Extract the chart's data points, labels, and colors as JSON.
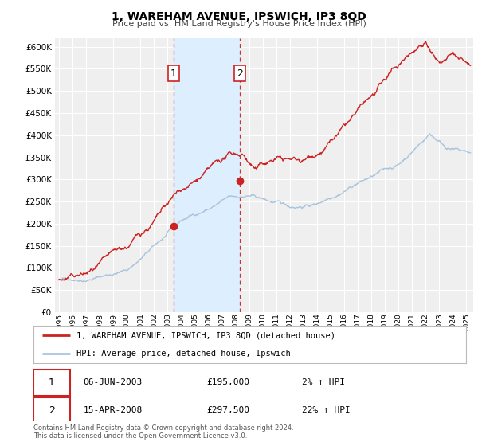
{
  "title": "1, WAREHAM AVENUE, IPSWICH, IP3 8QD",
  "subtitle": "Price paid vs. HM Land Registry's House Price Index (HPI)",
  "ylim": [
    0,
    620000
  ],
  "yticks": [
    0,
    50000,
    100000,
    150000,
    200000,
    250000,
    300000,
    350000,
    400000,
    450000,
    500000,
    550000,
    600000
  ],
  "xlim_start": 1994.7,
  "xlim_end": 2025.5,
  "bg_color": "#ffffff",
  "plot_bg_color": "#efefef",
  "grid_color": "#ffffff",
  "hpi_color": "#aac4dd",
  "price_color": "#cc2222",
  "marker1_date": 2003.44,
  "marker1_price": 195000,
  "marker2_date": 2008.29,
  "marker2_price": 297500,
  "shade_color": "#ddeeff",
  "dashed_color": "#cc3333",
  "legend_line1": "1, WAREHAM AVENUE, IPSWICH, IP3 8QD (detached house)",
  "legend_line2": "HPI: Average price, detached house, Ipswich",
  "annot1_date": "06-JUN-2003",
  "annot1_price": "£195,000",
  "annot1_hpi": "2% ↑ HPI",
  "annot2_date": "15-APR-2008",
  "annot2_price": "£297,500",
  "annot2_hpi": "22% ↑ HPI",
  "footer1": "Contains HM Land Registry data © Crown copyright and database right 2024.",
  "footer2": "This data is licensed under the Open Government Licence v3.0."
}
